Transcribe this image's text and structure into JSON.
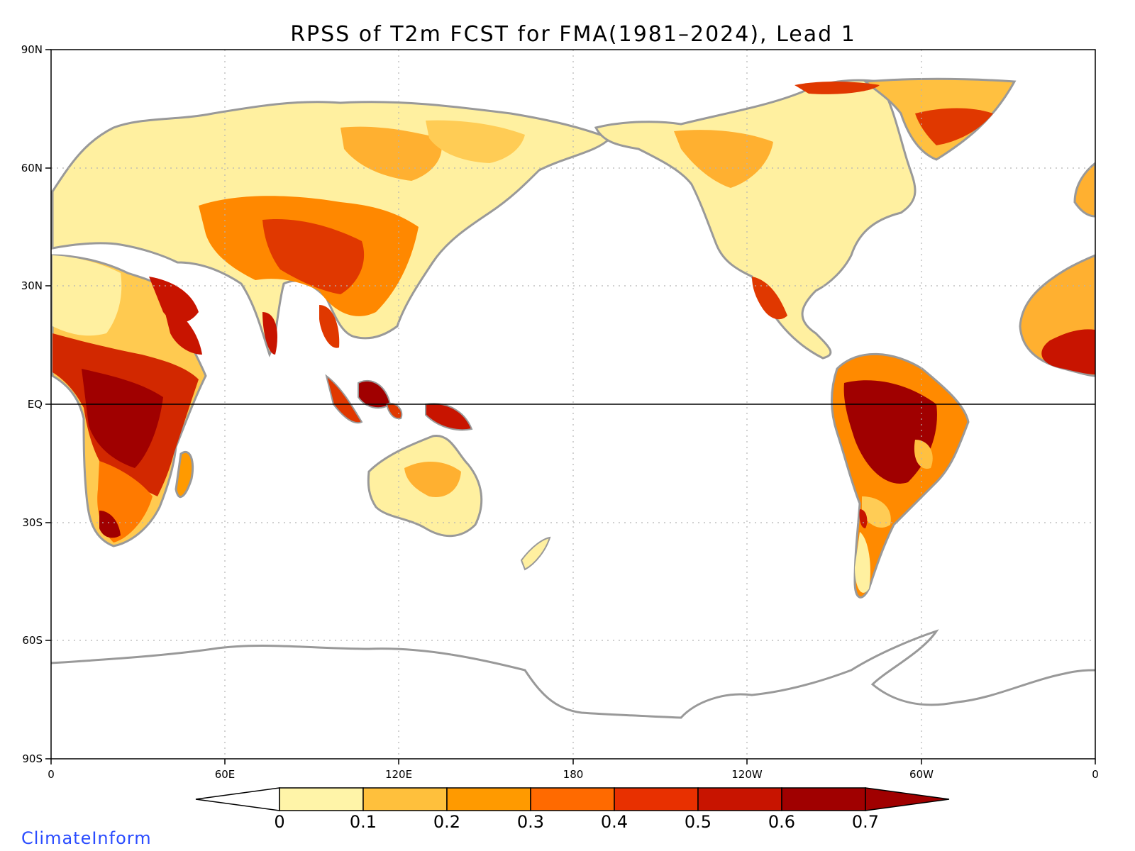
{
  "title": "RPSS of T2m FCST for FMA(1981–2024), Lead 1",
  "latitude_labels": [
    "90N",
    "60N",
    "30N",
    "EQ",
    "30S",
    "60S",
    "90S"
  ],
  "longitude_labels": [
    "0",
    "60E",
    "120E",
    "180",
    "120W",
    "60W",
    "0"
  ],
  "colorbar": {
    "tick_labels": [
      "0",
      "0.1",
      "0.2",
      "0.3",
      "0.4",
      "0.5",
      "0.6",
      "0.7"
    ],
    "bin_colors": [
      "#ffffff",
      "#fff4a8",
      "#ffc03c",
      "#ff9a00",
      "#ff6a00",
      "#e83000",
      "#c81400",
      "#a00000"
    ],
    "below_color": "#ffffff",
    "above_color": "#a00000"
  },
  "colors": {
    "land_outline": "#999999",
    "lakes_borders": "#000000",
    "grid": "#b4b4b4",
    "brand": "#2a4cff"
  },
  "brand_text": "ClimateInform"
}
